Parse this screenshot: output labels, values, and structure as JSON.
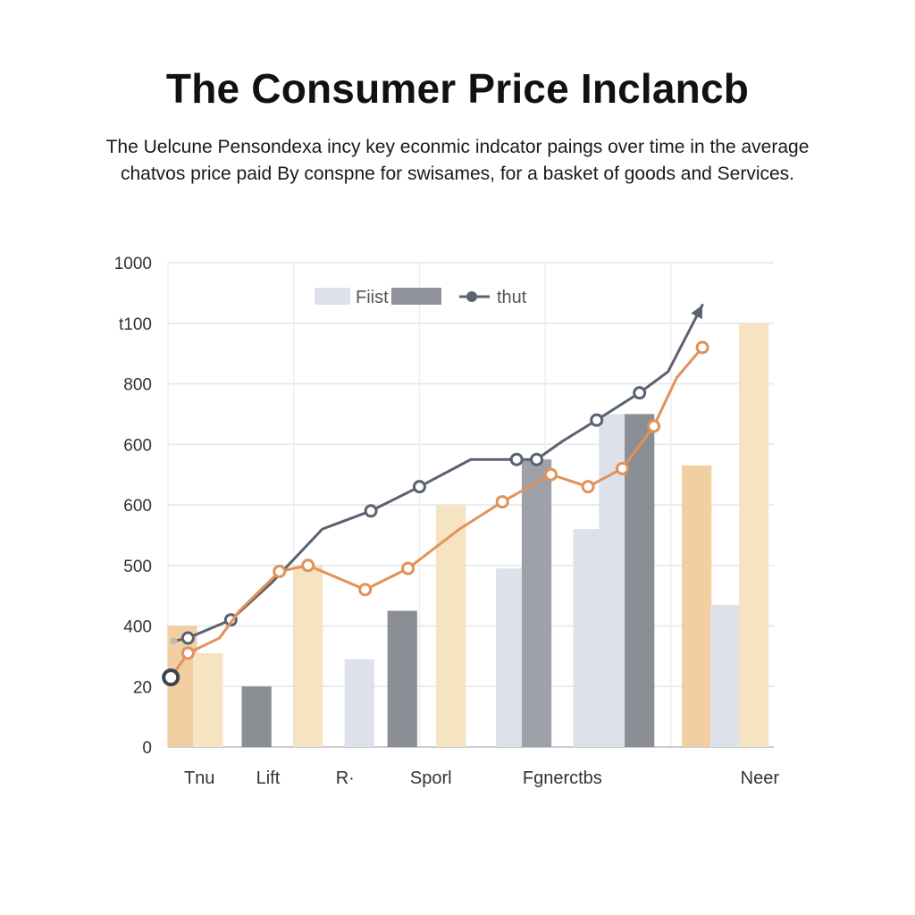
{
  "title": "The Consumer Price Inclancb",
  "subtitle": [
    "The Uelcune Pensondexa incy key econmic indcator paings over time in the average",
    "chatvos price paid By conspne for swisames, for a basket of goods and Services."
  ],
  "chart_data": {
    "type": "bar",
    "categories": [
      "Tnu",
      "Lift",
      "R·",
      "Sporl",
      "Fgnerctbs",
      "Neer"
    ],
    "y_tick_labels": [
      "0",
      "20",
      "400",
      "500",
      "600",
      "600",
      "800",
      "t100",
      "1000"
    ],
    "ylim": [
      0,
      8
    ],
    "grid": true,
    "legend": {
      "placement": "top-center",
      "entries": [
        {
          "label": "Fiist",
          "marker": "bar",
          "colors": [
            "#dde2ea",
            "#8f9299"
          ]
        },
        {
          "label": "thut",
          "marker": "line",
          "color": "#5a6270"
        }
      ]
    },
    "bars": [
      {
        "x": 0.25,
        "value": 2.0,
        "color": "#f2cfa3"
      },
      {
        "x": 0.7,
        "value": 1.55,
        "color": "#f6e3c2"
      },
      {
        "x": 1.55,
        "value": 1.0,
        "color": "#8b8e95"
      },
      {
        "x": 2.45,
        "value": 3.0,
        "color": "#f6e3c2"
      },
      {
        "x": 3.35,
        "value": 1.45,
        "color": "#dde2ea"
      },
      {
        "x": 4.1,
        "value": 2.25,
        "color": "#8b8e95"
      },
      {
        "x": 4.95,
        "value": 4.0,
        "color": "#f6e3c2"
      },
      {
        "x": 6.0,
        "value": 2.95,
        "color": "#dde2ea"
      },
      {
        "x": 6.45,
        "value": 4.75,
        "color": "#9ea1a8"
      },
      {
        "x": 7.35,
        "value": 3.6,
        "color": "#dde2ea"
      },
      {
        "x": 7.8,
        "value": 5.5,
        "color": "#dde2ea"
      },
      {
        "x": 8.25,
        "value": 5.5,
        "color": "#8b8e95"
      },
      {
        "x": 9.25,
        "value": 4.65,
        "color": "#f2cfa3"
      },
      {
        "x": 9.75,
        "value": 2.35,
        "color": "#dde2ea"
      },
      {
        "x": 10.25,
        "value": 7.0,
        "color": "#f6e3c2"
      }
    ],
    "series": [
      {
        "color": "#5a6270",
        "x": [
          0.1,
          0.35,
          1.1,
          1.8,
          2.7,
          3.55,
          4.4,
          5.3,
          6.1,
          6.45,
          6.9,
          7.5,
          8.25,
          8.75,
          9.35
        ],
        "values": [
          1.75,
          1.8,
          2.1,
          2.7,
          3.6,
          3.9,
          4.3,
          4.75,
          4.75,
          4.75,
          5.05,
          5.4,
          5.85,
          6.2,
          7.3
        ],
        "markers": [
          1,
          2,
          5,
          6,
          8,
          9,
          11,
          12
        ]
      },
      {
        "color": "#e1925a",
        "x": [
          0.05,
          0.35,
          0.9,
          1.25,
          1.95,
          2.45,
          3.45,
          4.2,
          5.1,
          5.85,
          6.7,
          7.35,
          7.95,
          8.5,
          8.9,
          9.35
        ],
        "values": [
          1.15,
          1.55,
          1.8,
          2.25,
          2.9,
          3.0,
          2.6,
          2.95,
          3.6,
          4.05,
          4.5,
          4.3,
          4.6,
          5.3,
          6.1,
          6.6
        ],
        "markers": [
          1,
          4,
          5,
          6,
          7,
          9,
          10,
          11,
          12,
          13,
          15
        ]
      }
    ]
  }
}
